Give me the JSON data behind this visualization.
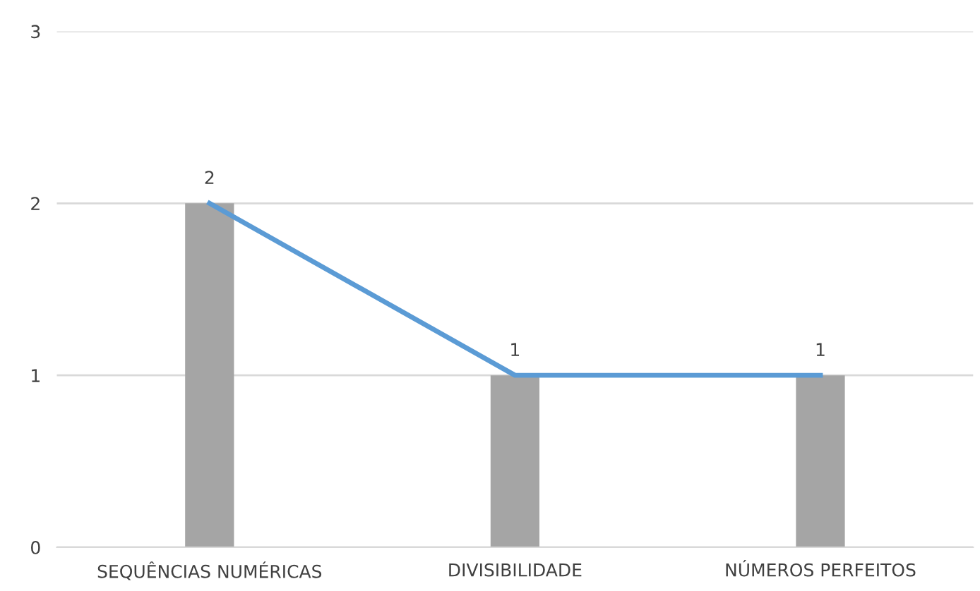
{
  "chart_data": {
    "type": "bar",
    "categories": [
      "SEQUÊNCIAS NUMÉRICAS",
      "DIVISIBILIDADE",
      "NÚMEROS PERFEITOS"
    ],
    "series": [
      {
        "color": "#a5a5a5",
        "values": [
          2,
          1,
          1
        ],
        "data_labels": true
      },
      {
        "type": "line",
        "color": "#5b9bd5",
        "values": [
          2,
          1,
          1
        ]
      }
    ],
    "ylim": [
      0,
      3
    ],
    "yticks": [
      0,
      1,
      2,
      3
    ],
    "grid": "y",
    "marker": "none",
    "line_style": "solid"
  }
}
